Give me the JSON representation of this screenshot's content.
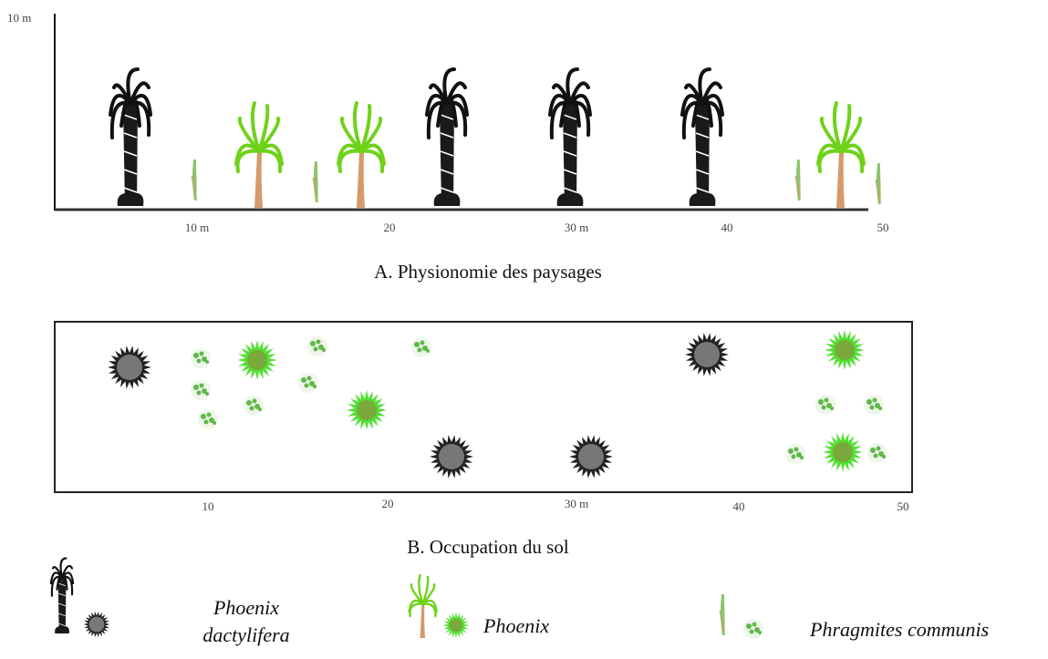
{
  "panel_a": {
    "y_label": "10 m",
    "x_labels": [
      "10 m",
      "20",
      "30 m",
      "40",
      "50"
    ],
    "caption": "A.  Physionomie des paysages"
  },
  "panel_b": {
    "x_labels": [
      "10",
      "20",
      "30 m",
      "40",
      "50"
    ],
    "caption": "B.  Occupation du sol"
  },
  "legend": [
    {
      "label": "Phoenix dactylifera"
    },
    {
      "label": "Phoenix"
    },
    {
      "label": "Phragmites communis"
    }
  ]
}
